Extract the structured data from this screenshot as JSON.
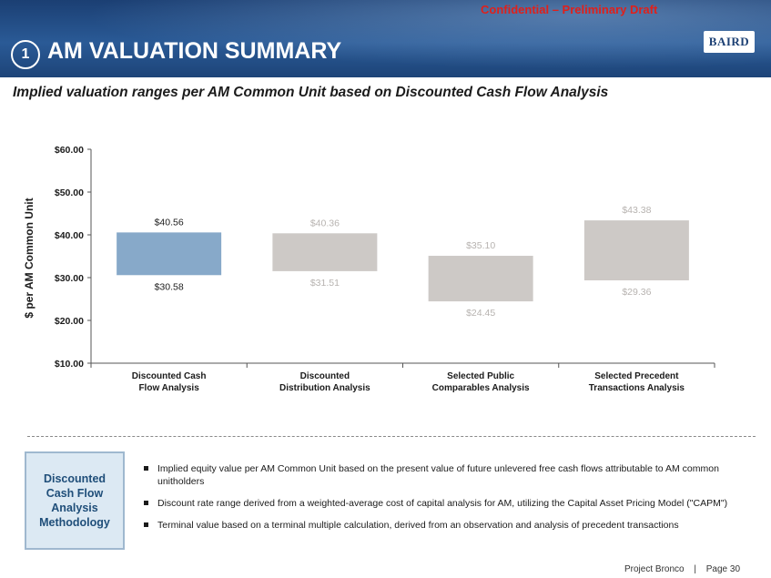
{
  "header": {
    "confidential_label": "Confidential – Preliminary Draft",
    "section_number": "1",
    "title": "AM VALUATION SUMMARY",
    "logo_text": "BAIRD"
  },
  "subtitle": "Implied valuation ranges per AM Common Unit based on Discounted Cash Flow Analysis",
  "chart_data": {
    "type": "bar",
    "subtype": "floating-range",
    "ylabel": "$ per AM Common Unit",
    "ylim": [
      10,
      60
    ],
    "yticks": [
      10,
      20,
      30,
      40,
      50,
      60
    ],
    "ytick_labels": [
      "$10.00",
      "$20.00",
      "$30.00",
      "$40.00",
      "$50.00",
      "$60.00"
    ],
    "categories": [
      [
        "Discounted Cash",
        "Flow Analysis"
      ],
      [
        "Discounted",
        "Distribution Analysis"
      ],
      [
        "Selected Public",
        "Comparables Analysis"
      ],
      [
        "Selected Precedent",
        "Transactions Analysis"
      ]
    ],
    "low": [
      30.58,
      31.51,
      24.45,
      29.36
    ],
    "high": [
      40.56,
      40.36,
      35.1,
      43.38
    ],
    "low_labels": [
      "$30.58",
      "$31.51",
      "$24.45",
      "$29.36"
    ],
    "high_labels": [
      "$40.56",
      "$40.36",
      "$35.10",
      "$43.38"
    ],
    "bar_colors": [
      "#87a9c9",
      "#cdc9c6",
      "#cdc9c6",
      "#cdc9c6"
    ],
    "label_colors": [
      "#1b1b1b",
      "#b7b3b0",
      "#b7b3b0",
      "#b7b3b0"
    ],
    "grid": false,
    "legend": "none"
  },
  "methodology": {
    "heading": "Discounted Cash Flow Analysis Methodology",
    "bullets": [
      "Implied equity value per AM Common Unit based on the present value of future unlevered free cash flows attributable to AM common unitholders",
      "Discount rate range derived from a weighted-average cost of capital analysis for AM, utilizing the Capital Asset Pricing Model (\"CAPM\")",
      "Terminal value based on a terminal multiple calculation, derived from an observation and analysis of precedent transactions"
    ]
  },
  "footer": {
    "project": "Project Bronco",
    "separator": "|",
    "page": "Page 30"
  }
}
